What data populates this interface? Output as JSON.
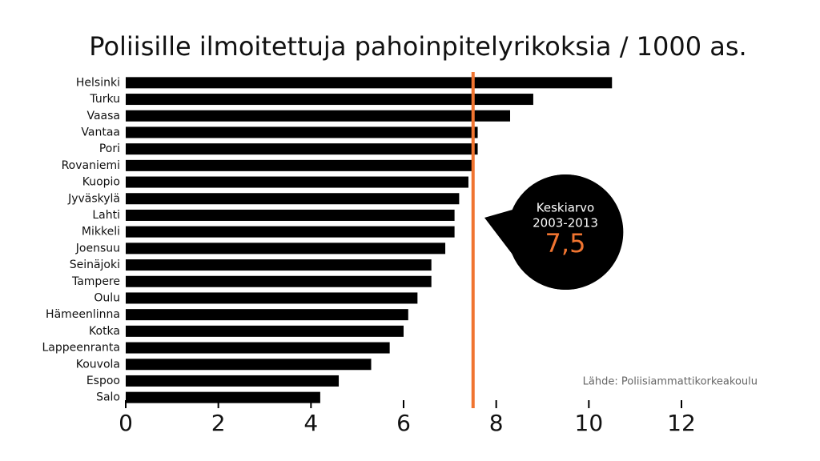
{
  "chart_data": {
    "type": "bar",
    "orientation": "horizontal",
    "title": "Poliisille ilmoitettuja pahoinpitelyrikoksia / 1000 as.",
    "categories": [
      "Helsinki",
      "Turku",
      "Vaasa",
      "Vantaa",
      "Pori",
      "Rovaniemi",
      "Kuopio",
      "Jyväskylä",
      "Lahti",
      "Mikkeli",
      "Joensuu",
      "Seinäjoki",
      "Tampere",
      "Oulu",
      "Hämeenlinna",
      "Kotka",
      "Lappeenranta",
      "Kouvola",
      "Espoo",
      "Salo"
    ],
    "values": [
      10.5,
      8.8,
      8.3,
      7.6,
      7.6,
      7.5,
      7.4,
      7.2,
      7.1,
      7.1,
      6.9,
      6.6,
      6.6,
      6.3,
      6.1,
      6.0,
      5.7,
      5.3,
      4.6,
      4.2
    ],
    "color": "#000000",
    "xlim": [
      0,
      12
    ],
    "xticks": [
      0,
      2,
      4,
      6,
      8,
      10,
      12
    ],
    "grid": false,
    "reference_line": {
      "value": 7.5,
      "label": "7,5",
      "color": "#f07430",
      "title": "Keskiarvo",
      "period": "2003-2013"
    },
    "source": "Lähde: Poliisiammattikorkeakoulu"
  }
}
